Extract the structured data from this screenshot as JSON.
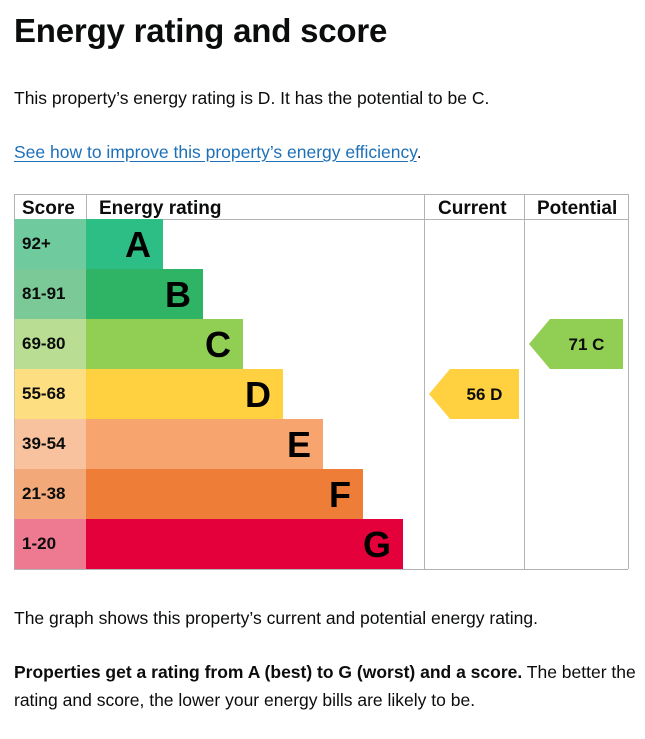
{
  "page": {
    "title": "Energy rating and score",
    "intro": "This property’s energy rating is D. It has the potential to be C.",
    "link_text": "See how to improve this property’s energy efficiency",
    "link_suffix": ".",
    "graph_note": "The graph shows this property’s current and potential energy rating.",
    "bottom_bold": "Properties get a rating from A (best) to G (worst) and a score.",
    "bottom_rest": " The better the rating and score, the lower your energy bills are likely to be."
  },
  "chart_data": {
    "type": "table",
    "headers": {
      "score": "Score",
      "rating": "Energy rating",
      "current": "Current",
      "potential": "Potential"
    },
    "bands": [
      {
        "letter": "A",
        "range": "92+",
        "color": "#2dbe85",
        "score_bg": "#6fcb9e"
      },
      {
        "letter": "B",
        "range": "81-91",
        "color": "#2fb466",
        "score_bg": "#7bc996"
      },
      {
        "letter": "C",
        "range": "69-80",
        "color": "#91cf54",
        "score_bg": "#b9de93"
      },
      {
        "letter": "D",
        "range": "55-68",
        "color": "#ffd141",
        "score_bg": "#fddf82"
      },
      {
        "letter": "E",
        "range": "39-54",
        "color": "#f7a46e",
        "score_bg": "#f8c29e"
      },
      {
        "letter": "F",
        "range": "21-38",
        "color": "#ee7d38",
        "score_bg": "#f2a879"
      },
      {
        "letter": "G",
        "range": "1-20",
        "color": "#e4003b",
        "score_bg": "#ee7a91"
      }
    ],
    "current": {
      "score": 56,
      "band": "D",
      "label": "56  D",
      "color": "#ffd141"
    },
    "potential": {
      "score": 71,
      "band": "C",
      "label": "71  C",
      "color": "#91cf54"
    }
  }
}
